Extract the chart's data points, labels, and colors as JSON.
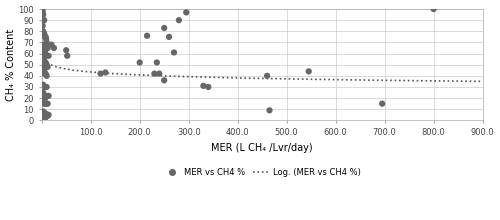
{
  "points": [
    [
      1,
      100
    ],
    [
      2,
      98
    ],
    [
      3,
      95
    ],
    [
      4,
      90
    ],
    [
      5,
      90
    ],
    [
      2,
      85
    ],
    [
      3,
      80
    ],
    [
      5,
      78
    ],
    [
      7,
      75
    ],
    [
      8,
      75
    ],
    [
      3,
      77
    ],
    [
      4,
      76
    ],
    [
      6,
      75
    ],
    [
      9,
      73
    ],
    [
      10,
      70
    ],
    [
      2,
      68
    ],
    [
      4,
      67
    ],
    [
      6,
      65
    ],
    [
      8,
      65
    ],
    [
      10,
      65
    ],
    [
      2,
      63
    ],
    [
      5,
      63
    ],
    [
      7,
      62
    ],
    [
      12,
      65
    ],
    [
      3,
      60
    ],
    [
      6,
      60
    ],
    [
      9,
      58
    ],
    [
      14,
      58
    ],
    [
      3,
      55
    ],
    [
      5,
      56
    ],
    [
      8,
      52
    ],
    [
      10,
      50
    ],
    [
      2,
      50
    ],
    [
      4,
      48
    ],
    [
      7,
      47
    ],
    [
      12,
      48
    ],
    [
      2,
      43
    ],
    [
      4,
      43
    ],
    [
      6,
      42
    ],
    [
      8,
      42
    ],
    [
      10,
      40
    ],
    [
      3,
      32
    ],
    [
      5,
      30
    ],
    [
      10,
      30
    ],
    [
      3,
      25
    ],
    [
      5,
      22
    ],
    [
      7,
      20
    ],
    [
      10,
      22
    ],
    [
      14,
      22
    ],
    [
      3,
      17
    ],
    [
      5,
      15
    ],
    [
      7,
      15
    ],
    [
      10,
      15
    ],
    [
      12,
      15
    ],
    [
      3,
      8
    ],
    [
      5,
      7
    ],
    [
      8,
      6
    ],
    [
      10,
      5
    ],
    [
      14,
      5
    ],
    [
      3,
      2
    ],
    [
      5,
      0
    ],
    [
      7,
      2
    ],
    [
      12,
      4
    ],
    [
      20,
      68
    ],
    [
      25,
      65
    ],
    [
      50,
      63
    ],
    [
      52,
      58
    ],
    [
      120,
      42
    ],
    [
      130,
      43
    ],
    [
      200,
      52
    ],
    [
      215,
      76
    ],
    [
      230,
      42
    ],
    [
      235,
      52
    ],
    [
      250,
      83
    ],
    [
      260,
      75
    ],
    [
      270,
      61
    ],
    [
      280,
      90
    ],
    [
      295,
      97
    ],
    [
      250,
      36
    ],
    [
      240,
      42
    ],
    [
      330,
      31
    ],
    [
      340,
      30
    ],
    [
      460,
      40
    ],
    [
      465,
      9
    ],
    [
      545,
      44
    ],
    [
      695,
      15
    ],
    [
      800,
      100
    ]
  ],
  "log_a": -4.8,
  "log_b": 66.0,
  "scatter_color": "#666666",
  "curve_color": "#555555",
  "marker_size": 4.5,
  "xlabel": "MER (L CH₄ /Lvr/day)",
  "ylabel": "CH₄ % Content",
  "xlim": [
    0,
    900
  ],
  "ylim": [
    0,
    100
  ],
  "xticks": [
    0,
    100.0,
    200.0,
    300.0,
    400.0,
    500.0,
    600.0,
    700.0,
    800.0,
    900.0
  ],
  "yticks": [
    0,
    10,
    20,
    30,
    40,
    50,
    60,
    70,
    80,
    90,
    100
  ],
  "legend_dot_label": "MER vs CH4 %",
  "legend_line_label": "Log. (MER vs CH4 %)",
  "background": "#ffffff",
  "grid_color": "#cccccc"
}
